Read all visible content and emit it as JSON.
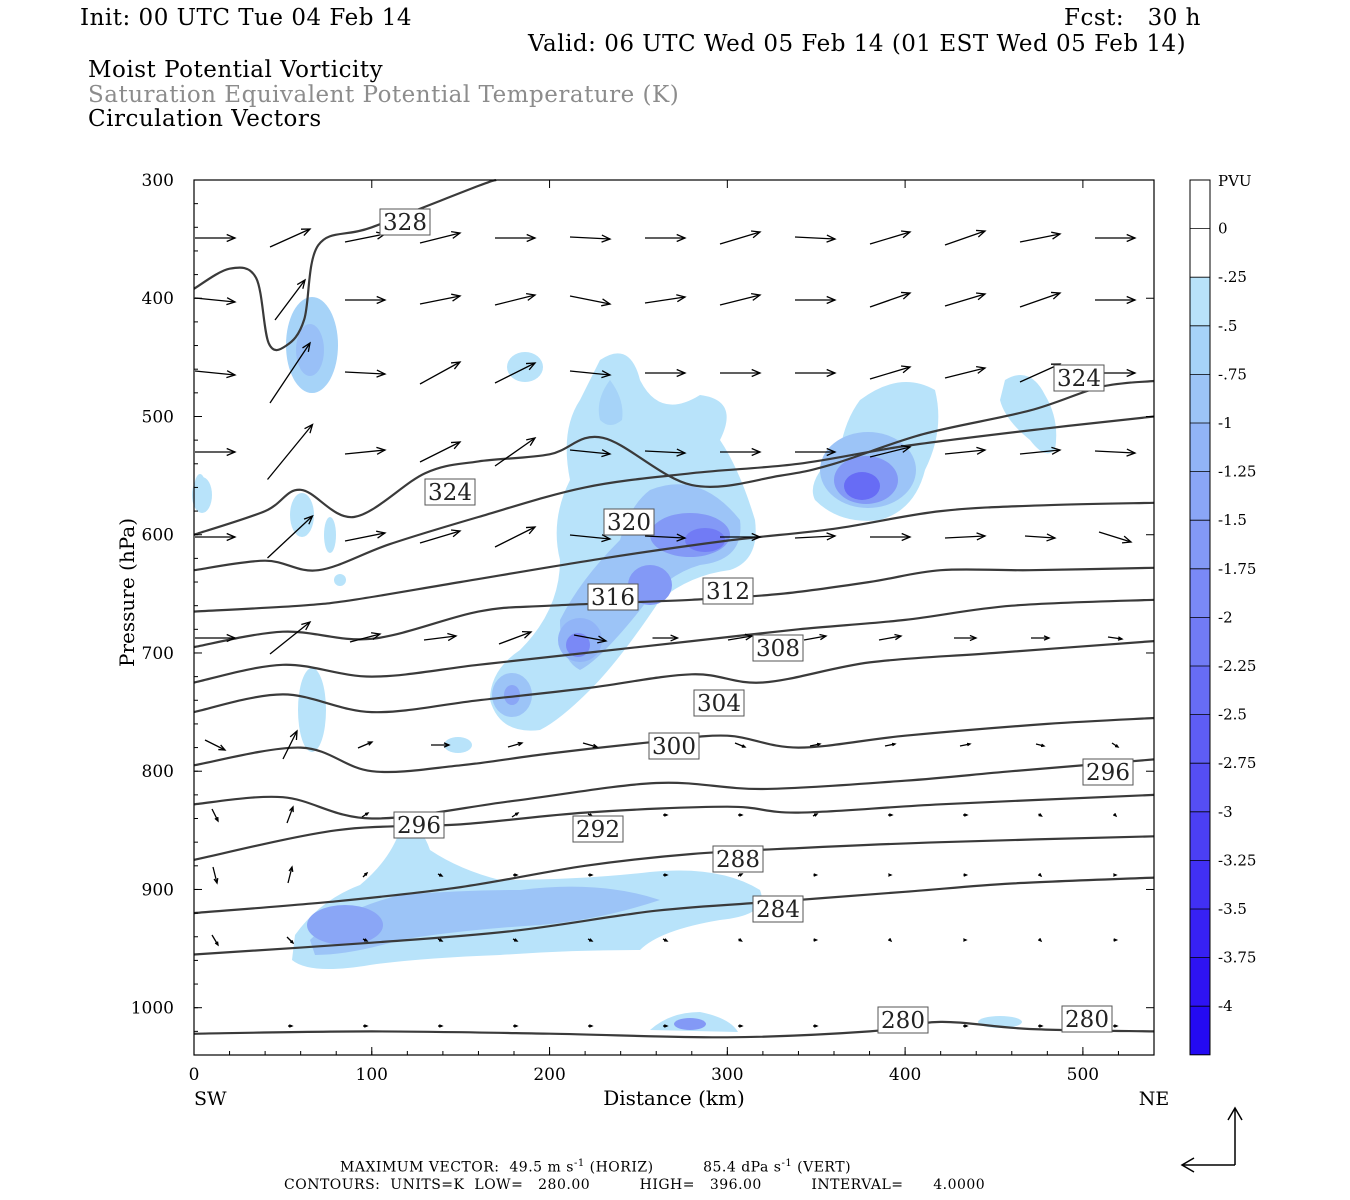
{
  "header": {
    "init": "Init: 00 UTC Tue 04 Feb 14",
    "fcst": "Fcst:   30 h",
    "valid": "Valid: 06 UTC Wed 05 Feb 14 (01 EST Wed 05 Feb 14)",
    "field1": "Moist Potential Vorticity",
    "field2": "Saturation Equivalent Potential Temperature (K)",
    "field3": "Circulation Vectors"
  },
  "footer": {
    "max_vector_label": "MAXIMUM VECTOR:",
    "max_vector_horiz": "49.5",
    "horiz_unit": "m s",
    "horiz_exp": "-1",
    "horiz_tag": "(HORIZ)",
    "max_vector_vert": "85.4",
    "vert_unit": "dPa s",
    "vert_exp": "-1",
    "vert_tag": "(VERT)",
    "contours": "CONTOURS:  UNITS=K  LOW=   280.00          HIGH=   396.00          INTERVAL=      4.0000"
  },
  "colors": {
    "contour": "#3a3a3a",
    "vector": "#000000",
    "pv_scale": [
      "#ffffff",
      "#ffffff",
      "#b8e3fa",
      "#a6d3f8",
      "#9cc4f7",
      "#91b4f7",
      "#8aa6f6",
      "#8399f6",
      "#7a89f6",
      "#717bf5",
      "#676cf5",
      "#5e5df5",
      "#554ef4",
      "#4b3ff4",
      "#4130f4",
      "#3721f4",
      "#2e13f3",
      "#240af3"
    ]
  },
  "chart_data": {
    "type": "cross-section",
    "xlabel": "Distance (km)",
    "ylabel": "Pressure (hPa)",
    "xlim": [
      0,
      540
    ],
    "ylim": [
      1040,
      300
    ],
    "x_ticks": [
      "0",
      "100",
      "200",
      "300",
      "400",
      "500"
    ],
    "y_ticks": [
      "300",
      "400",
      "500",
      "600",
      "700",
      "800",
      "900",
      "1000"
    ],
    "x_end_labels": [
      "SW",
      "NE"
    ],
    "legend": {
      "title": "PVU",
      "labels": [
        "0",
        "-.25",
        "-.5",
        "-.75",
        "-1",
        "-1.25",
        "-1.5",
        "-1.75",
        "-2",
        "-2.25",
        "-2.5",
        "-2.75",
        "-3",
        "-3.25",
        "-3.5",
        "-3.75",
        "-4"
      ]
    },
    "theta_e_contours": [
      {
        "label": "280",
        "points": [
          [
            0,
            1022
          ],
          [
            100,
            1020
          ],
          [
            200,
            1022
          ],
          [
            300,
            1025
          ],
          [
            380,
            1020
          ],
          [
            420,
            1012
          ],
          [
            470,
            1018
          ],
          [
            540,
            1020
          ]
        ]
      },
      {
        "label": "284",
        "points": [
          [
            0,
            955
          ],
          [
            100,
            945
          ],
          [
            180,
            935
          ],
          [
            260,
            918
          ],
          [
            330,
            910
          ],
          [
            400,
            902
          ],
          [
            460,
            895
          ],
          [
            540,
            890
          ]
        ]
      },
      {
        "label": "288",
        "points": [
          [
            0,
            920
          ],
          [
            80,
            910
          ],
          [
            150,
            898
          ],
          [
            220,
            880
          ],
          [
            280,
            870
          ],
          [
            340,
            865
          ],
          [
            420,
            860
          ],
          [
            540,
            855
          ]
        ]
      },
      {
        "label": "292",
        "points": [
          [
            0,
            875
          ],
          [
            80,
            850
          ],
          [
            150,
            845
          ],
          [
            220,
            835
          ],
          [
            300,
            830
          ],
          [
            340,
            835
          ],
          [
            420,
            828
          ],
          [
            540,
            820
          ]
        ]
      },
      {
        "label": "296",
        "points": [
          [
            0,
            828
          ],
          [
            50,
            822
          ],
          [
            100,
            840
          ],
          [
            180,
            825
          ],
          [
            260,
            810
          ],
          [
            320,
            815
          ],
          [
            400,
            808
          ],
          [
            460,
            800
          ],
          [
            540,
            790
          ]
        ]
      },
      {
        "label": "300",
        "points": [
          [
            0,
            795
          ],
          [
            60,
            780
          ],
          [
            100,
            800
          ],
          [
            150,
            795
          ],
          [
            200,
            785
          ],
          [
            260,
            775
          ],
          [
            300,
            770
          ],
          [
            340,
            780
          ],
          [
            400,
            770
          ],
          [
            480,
            760
          ],
          [
            540,
            755
          ]
        ]
      },
      {
        "label": "304",
        "points": [
          [
            0,
            750
          ],
          [
            50,
            735
          ],
          [
            100,
            750
          ],
          [
            160,
            740
          ],
          [
            220,
            730
          ],
          [
            280,
            718
          ],
          [
            320,
            725
          ],
          [
            380,
            708
          ],
          [
            450,
            700
          ],
          [
            540,
            690
          ]
        ]
      },
      {
        "label": "308",
        "points": [
          [
            0,
            725
          ],
          [
            50,
            710
          ],
          [
            100,
            720
          ],
          [
            160,
            710
          ],
          [
            220,
            700
          ],
          [
            280,
            690
          ],
          [
            340,
            680
          ],
          [
            400,
            672
          ],
          [
            460,
            660
          ],
          [
            540,
            655
          ]
        ]
      },
      {
        "label": "312",
        "points": [
          [
            0,
            695
          ],
          [
            50,
            682
          ],
          [
            100,
            688
          ],
          [
            160,
            665
          ],
          [
            200,
            660
          ],
          [
            280,
            655
          ],
          [
            330,
            650
          ],
          [
            380,
            640
          ],
          [
            420,
            630
          ],
          [
            470,
            630
          ],
          [
            540,
            628
          ]
        ]
      },
      {
        "label": "316",
        "points": [
          [
            0,
            665
          ],
          [
            60,
            660
          ],
          [
            90,
            655
          ],
          [
            150,
            640
          ],
          [
            230,
            620
          ],
          [
            300,
            605
          ],
          [
            360,
            595
          ],
          [
            420,
            580
          ],
          [
            480,
            575
          ],
          [
            540,
            573
          ]
        ]
      },
      {
        "label": "320",
        "points": [
          [
            0,
            630
          ],
          [
            40,
            622
          ],
          [
            70,
            630
          ],
          [
            110,
            608
          ],
          [
            160,
            585
          ],
          [
            220,
            560
          ],
          [
            280,
            548
          ],
          [
            340,
            540
          ],
          [
            400,
            525
          ],
          [
            480,
            510
          ],
          [
            540,
            500
          ]
        ]
      },
      {
        "label": "324",
        "points": [
          [
            0,
            600
          ],
          [
            40,
            580
          ],
          [
            60,
            562
          ],
          [
            90,
            585
          ],
          [
            130,
            548
          ],
          [
            160,
            538
          ],
          [
            200,
            532
          ],
          [
            230,
            518
          ],
          [
            280,
            558
          ],
          [
            330,
            550
          ],
          [
            360,
            540
          ],
          [
            410,
            515
          ],
          [
            470,
            495
          ],
          [
            510,
            475
          ],
          [
            540,
            470
          ]
        ]
      },
      {
        "label": "328",
        "points": [
          [
            0,
            392
          ],
          [
            20,
            375
          ],
          [
            35,
            383
          ],
          [
            42,
            438
          ],
          [
            52,
            440
          ],
          [
            62,
            418
          ],
          [
            70,
            355
          ],
          [
            100,
            340
          ],
          [
            160,
            305
          ],
          [
            170,
            300
          ]
        ]
      }
    ]
  }
}
